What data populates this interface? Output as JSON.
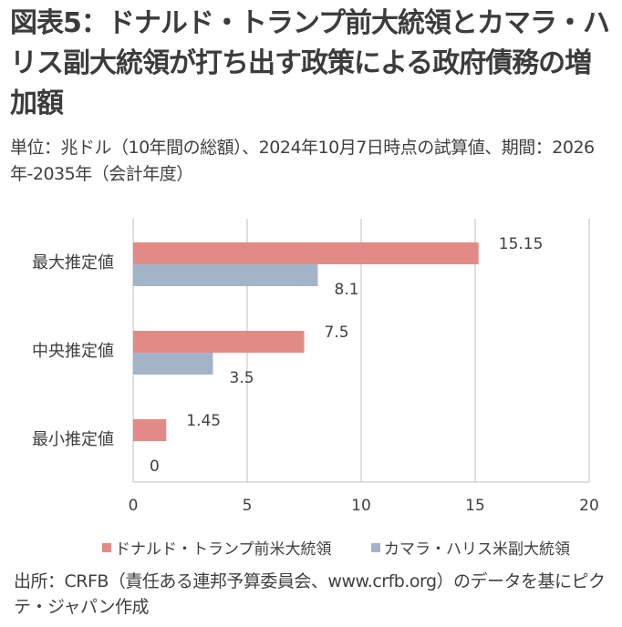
{
  "title": "図表5：ドナルド・トランプ前大統領とカマラ・ハリス副大統領が打ち出す政策による政府債務の増加額",
  "subtitle": "単位：兆ドル（10年間の総額）、2024年10月7日時点の試算値、期間：2026年-2035年（会計年度）",
  "source": "出所：CRFB（責任ある連邦予算委員会、www.crfb.org）のデータを基にピクテ・ジャパン作成",
  "colors": {
    "trump": "#e28b86",
    "harris": "#a3b4c9",
    "axis": "#bfbfbf",
    "text": "#404040"
  },
  "chart_data": {
    "type": "bar",
    "orientation": "horizontal",
    "categories": [
      "最大推定値",
      "中央推定値",
      "最小推定値"
    ],
    "series": [
      {
        "name": "ドナルド・トランプ前米大統領",
        "values": [
          15.15,
          7.5,
          1.45
        ],
        "labels": [
          "15.15",
          "7.5",
          "1.45"
        ]
      },
      {
        "name": "カマラ・ハリス米副大統領",
        "values": [
          8.1,
          3.5,
          0
        ],
        "labels": [
          "8.1",
          "3.5",
          "0"
        ]
      }
    ],
    "xlim": [
      0,
      20
    ],
    "xticks": [
      0,
      5,
      10,
      15,
      20
    ],
    "grid": true,
    "legend_position": "bottom"
  }
}
